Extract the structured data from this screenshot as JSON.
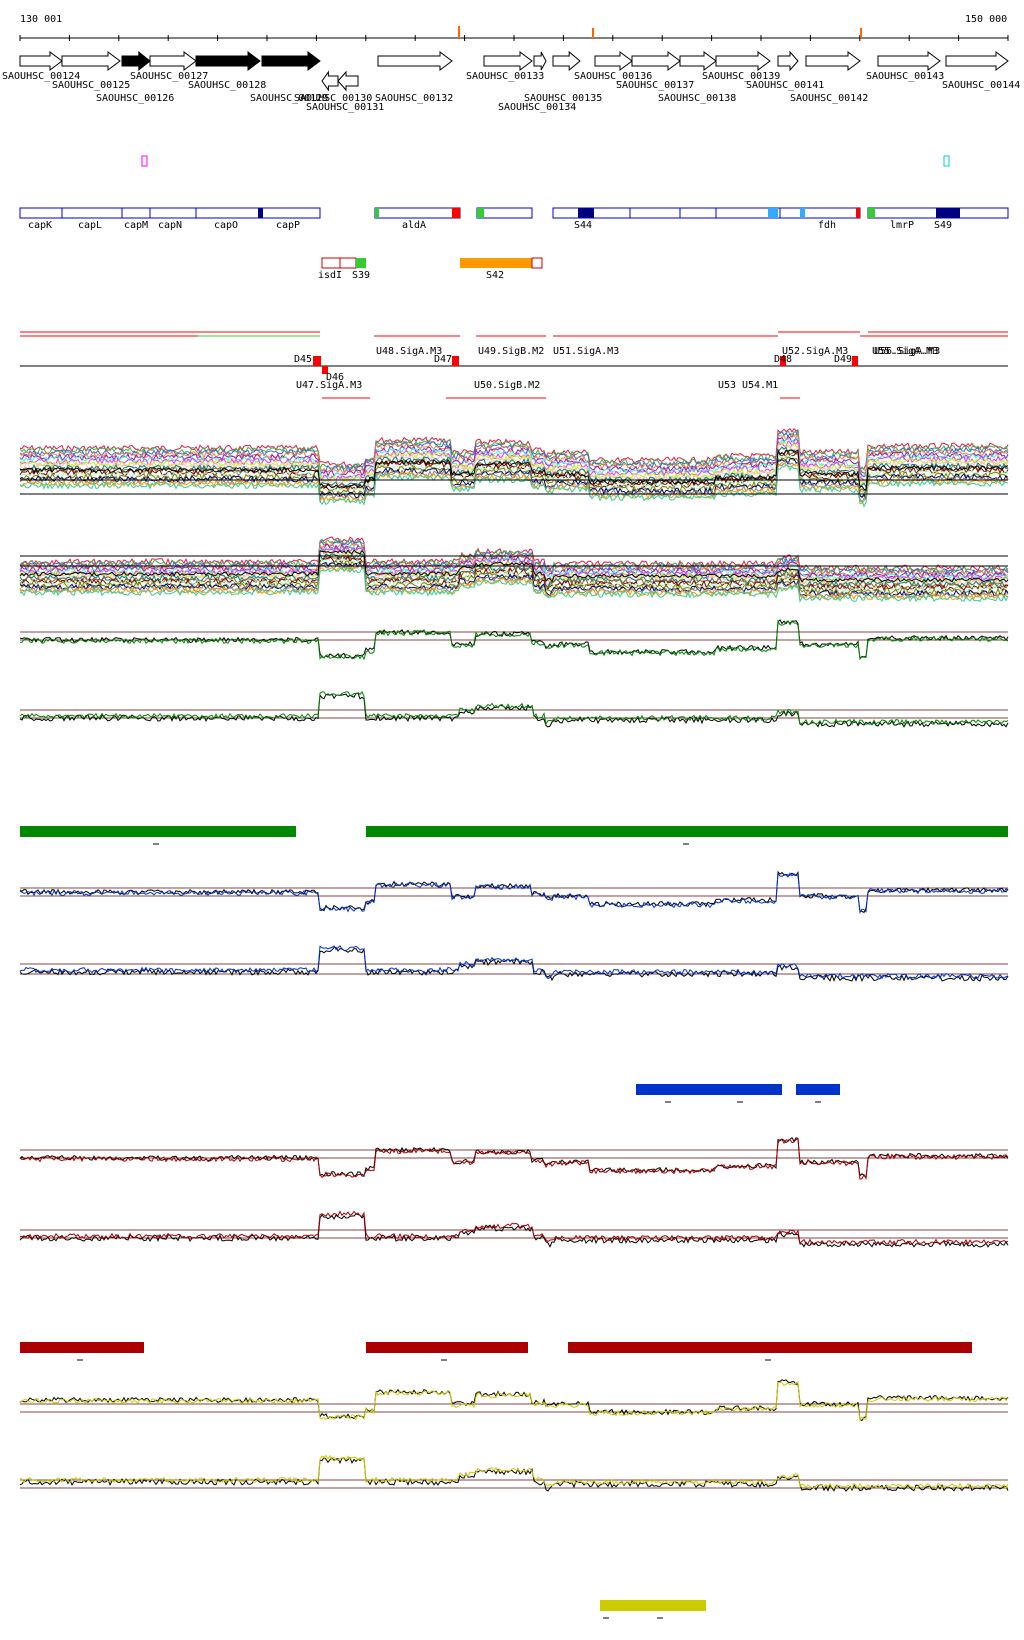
{
  "coords": {
    "start": "130 001",
    "end": "150 000"
  },
  "genes": [
    {
      "id": "SAOUHSC_00124",
      "dir": "+",
      "filled": false
    },
    {
      "id": "SAOUHSC_00125",
      "dir": "+",
      "filled": false
    },
    {
      "id": "SAOUHSC_00126",
      "dir": "+",
      "filled": true
    },
    {
      "id": "SAOUHSC_00127",
      "dir": "+",
      "filled": false
    },
    {
      "id": "SAOUHSC_00128",
      "dir": "+",
      "filled": true
    },
    {
      "id": "SAOUHSC_00129",
      "dir": "+",
      "filled": true
    },
    {
      "id": "SAOUHSC_00130",
      "dir": "-",
      "filled": false
    },
    {
      "id": "SAOUHSC_00131",
      "dir": "-",
      "filled": false
    },
    {
      "id": "SAOUHSC_00132",
      "dir": "+",
      "filled": false
    },
    {
      "id": "SAOUHSC_00133",
      "dir": "+",
      "filled": false
    },
    {
      "id": "SAOUHSC_00134",
      "dir": "+",
      "filled": false
    },
    {
      "id": "SAOUHSC_00135",
      "dir": "+",
      "filled": false
    },
    {
      "id": "SAOUHSC_00136",
      "dir": "+",
      "filled": false
    },
    {
      "id": "SAOUHSC_00137",
      "dir": "+",
      "filled": false
    },
    {
      "id": "SAOUHSC_00138",
      "dir": "+",
      "filled": false
    },
    {
      "id": "SAOUHSC_00139",
      "dir": "+",
      "filled": false
    },
    {
      "id": "SAOUHSC_00141",
      "dir": "+",
      "filled": false
    },
    {
      "id": "SAOUHSC_00142",
      "dir": "+",
      "filled": false
    },
    {
      "id": "SAOUHSC_00143",
      "dir": "+",
      "filled": false
    },
    {
      "id": "SAOUHSC_00144",
      "dir": "+",
      "filled": false
    }
  ],
  "gene_symbols": [
    "capK",
    "capL",
    "capM",
    "capN",
    "capO",
    "capP",
    "aldA",
    "S44",
    "fdh",
    "lmrP",
    "S49"
  ],
  "sense_elements": [
    "isdI",
    "S39",
    "S42"
  ],
  "upshifts": [
    "U47.SigA.M3",
    "U48.SigA.M3",
    "U49.SigB.M2",
    "U50.SigB.M2",
    "U51.SigA.M3",
    "U52.SigA.M3",
    "U53",
    "U54.M1",
    "U55.SigA.M3",
    "U56.SigA.M3"
  ],
  "downshifts": [
    "D45",
    "D46",
    "D47",
    "D48",
    "D49"
  ],
  "colors": {
    "gene_box": "#0000cc",
    "shift": "#ff0000",
    "green": "#008800",
    "blue": "#0033cc",
    "red": "#aa0000",
    "yellow": "#cccc00",
    "orange": "#ff9900"
  }
}
